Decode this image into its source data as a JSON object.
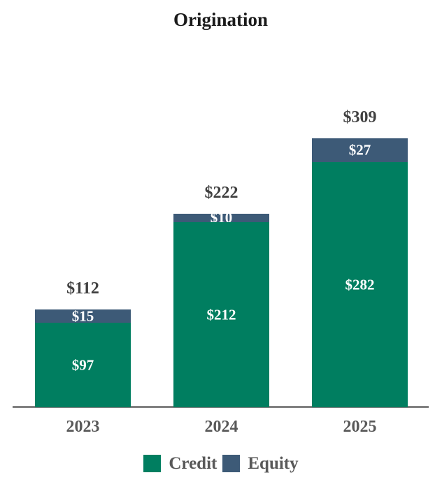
{
  "title": "Origination",
  "colors": {
    "credit": "#007E60",
    "equity": "#3D5A77",
    "axis": "#808080",
    "total_label": "#404040",
    "category_label": "#595959",
    "inside_label": "#FFFFFF",
    "title": "#1A1A1A",
    "background": "#FFFFFF"
  },
  "chart_data": {
    "type": "bar",
    "stacked": true,
    "title": "Origination",
    "xlabel": "",
    "ylabel": "",
    "categories": [
      "2023",
      "2024",
      "2025"
    ],
    "series": [
      {
        "name": "Credit",
        "color": "#007E60",
        "values": [
          97,
          212,
          282
        ],
        "labels": [
          "$97",
          "$212",
          "$282"
        ]
      },
      {
        "name": "Equity",
        "color": "#3D5A77",
        "values": [
          15,
          10,
          27
        ],
        "labels": [
          "$15",
          "$10",
          "$27"
        ]
      }
    ],
    "totals": [
      112,
      222,
      309
    ],
    "total_labels": [
      "$112",
      "$222",
      "$309"
    ],
    "value_prefix": "$",
    "ylim": [
      0,
      468
    ],
    "grid": false,
    "legend_position": "bottom"
  },
  "legend": {
    "items": [
      {
        "label": "Credit",
        "color": "#007E60"
      },
      {
        "label": "Equity",
        "color": "#3D5A77"
      }
    ]
  }
}
